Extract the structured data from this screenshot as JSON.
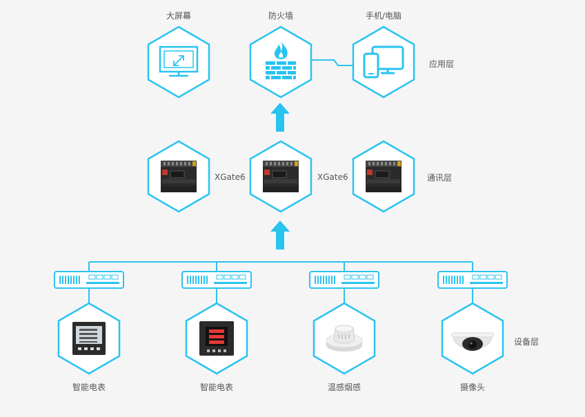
{
  "colors": {
    "accent": "#29c3f0",
    "background": "#f5f5f5",
    "text": "#555555",
    "flame": "#29c3f0"
  },
  "application_layer": {
    "label": "应用层",
    "nodes": [
      {
        "title": "大屏幕",
        "icon": "big-screen-icon"
      },
      {
        "title": "防火墙",
        "icon": "firewall-icon"
      },
      {
        "title": "手机/电脑",
        "icon": "phone-computer-icon"
      }
    ]
  },
  "communication_layer": {
    "label": "通讯层",
    "gateways": [
      {
        "name": "XGate6",
        "icon": "gateway-device-icon"
      },
      {
        "name": "XGate6",
        "icon": "gateway-device-icon"
      },
      {
        "icon": "gateway-device-icon"
      }
    ]
  },
  "device_layer": {
    "label": "设备层",
    "devices": [
      {
        "title": "智能电表",
        "icon": "smart-meter-icon",
        "switch_icon": "network-switch-icon"
      },
      {
        "title": "智能电表",
        "icon": "smart-meter-red-icon",
        "switch_icon": "network-switch-icon"
      },
      {
        "title": "温感烟感",
        "icon": "smoke-detector-icon",
        "switch_icon": "network-switch-icon"
      },
      {
        "title": "摄像头",
        "icon": "camera-icon",
        "switch_icon": "network-switch-icon"
      }
    ]
  }
}
